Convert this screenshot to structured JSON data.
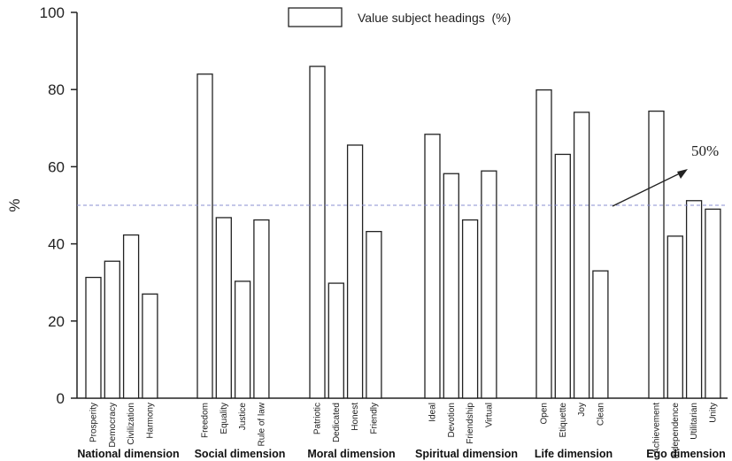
{
  "chart_data": {
    "type": "bar",
    "ylabel": "%",
    "ylim": [
      0,
      100
    ],
    "yticks": [
      0,
      20,
      40,
      60,
      80,
      100
    ],
    "grid": false,
    "legend": {
      "entry": "Value subject headings  (%)",
      "placement": "top-center"
    },
    "reference_line": {
      "value": 50,
      "label": "50%",
      "style": "dashed"
    },
    "groups": [
      {
        "name": "National dimension",
        "categories": [
          "Prosperity",
          "Democracy",
          "Civilization",
          "Harmony"
        ],
        "values": [
          31.3,
          35.5,
          42.3,
          27.0
        ]
      },
      {
        "name": "Social dimension",
        "categories": [
          "Freedom",
          "Equality",
          "Justice",
          "Rule of law"
        ],
        "values": [
          84.0,
          46.8,
          30.3,
          46.2
        ]
      },
      {
        "name": "Moral dimension",
        "categories": [
          "Patriotic",
          "Dedicated",
          "Honest",
          "Friendly"
        ],
        "values": [
          86.0,
          29.8,
          65.6,
          43.2
        ]
      },
      {
        "name": "Spiritual dimension",
        "categories": [
          "Ideal",
          "Devotion",
          "Friendship",
          "Virtual"
        ],
        "values": [
          68.4,
          58.2,
          46.2,
          58.9
        ]
      },
      {
        "name": "Life dimension",
        "categories": [
          "Open",
          "Etiquette",
          "Joy",
          "Clean"
        ],
        "values": [
          79.9,
          63.2,
          74.1,
          33.0
        ]
      },
      {
        "name": "Ego dimension",
        "categories": [
          "Achievement",
          "Independence",
          "Utilitarian",
          "Unity"
        ],
        "values": [
          74.4,
          42.0,
          51.2,
          49.0
        ]
      }
    ]
  }
}
